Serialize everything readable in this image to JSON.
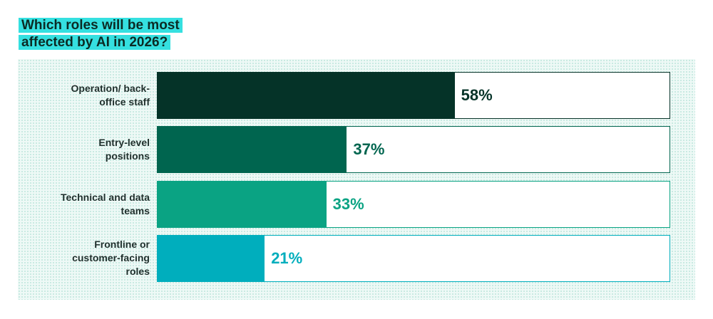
{
  "chart_data": {
    "type": "hbar",
    "title": "Which roles will be most affected by AI in 2026?",
    "categories": [
      "Operation/ back-office staff",
      "Entry-level positions",
      "Technical and data teams",
      "Frontline or customer-facing roles"
    ],
    "values": [
      58,
      37,
      33,
      21
    ],
    "value_labels": [
      "58%",
      "37%",
      "33%",
      "21%"
    ],
    "colors": [
      "#053328",
      "#00654f",
      "#0aa383",
      "#00aebd"
    ],
    "xlim": [
      0,
      100
    ]
  }
}
